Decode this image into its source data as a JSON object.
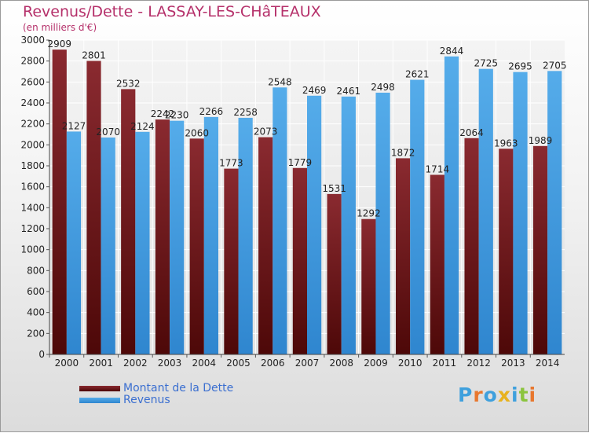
{
  "header": {
    "title": "Revenus/Dette - LASSAY-LES-CHâTEAUX",
    "subtitle": "(en milliers d'€)"
  },
  "logo": {
    "text": "Proxiti"
  },
  "colors": {
    "dette": "#7a1f24",
    "revenus": "#4aa3e6",
    "title": "#b5306a"
  },
  "chart_data": {
    "type": "bar",
    "title": "Revenus/Dette - LASSAY-LES-CHâTEAUX",
    "subtitle": "(en milliers d'€)",
    "categories": [
      "2000",
      "2001",
      "2002",
      "2003",
      "2004",
      "2005",
      "2006",
      "2007",
      "2008",
      "2009",
      "2010",
      "2011",
      "2012",
      "2013",
      "2014"
    ],
    "series": [
      {
        "name": "Montant de la Dette",
        "values": [
          2909,
          2801,
          2532,
          2242,
          2060,
          1773,
          2073,
          1779,
          1531,
          1292,
          1872,
          1714,
          2064,
          1963,
          1989
        ],
        "labels": [
          "2909",
          "2801",
          "2532",
          "2242",
          "2060",
          "1773",
          "2073",
          "1779",
          "1531",
          "1292",
          "1872",
          "1714",
          "2064",
          "1963",
          "1989"
        ]
      },
      {
        "name": "Revenus",
        "values": [
          2127,
          2070,
          2124,
          2230,
          2266,
          2258,
          2548,
          2469,
          2461,
          2498,
          2621,
          2844,
          2725,
          2695,
          2705
        ],
        "labels": [
          "2127",
          "2070",
          "2124",
          "2230",
          "2266",
          "2258",
          "2548",
          "2469",
          "2461",
          "2498",
          "2621",
          "2844",
          "2725",
          "2695",
          "2705"
        ]
      }
    ],
    "ylim": [
      0,
      3000
    ],
    "yticks": [
      "0",
      "200",
      "400",
      "600",
      "800",
      "1000",
      "1200",
      "1400",
      "1600",
      "1800",
      "2000",
      "2200",
      "2400",
      "2600",
      "2800",
      "3000"
    ],
    "grid": true,
    "legend": "bottom-left"
  }
}
